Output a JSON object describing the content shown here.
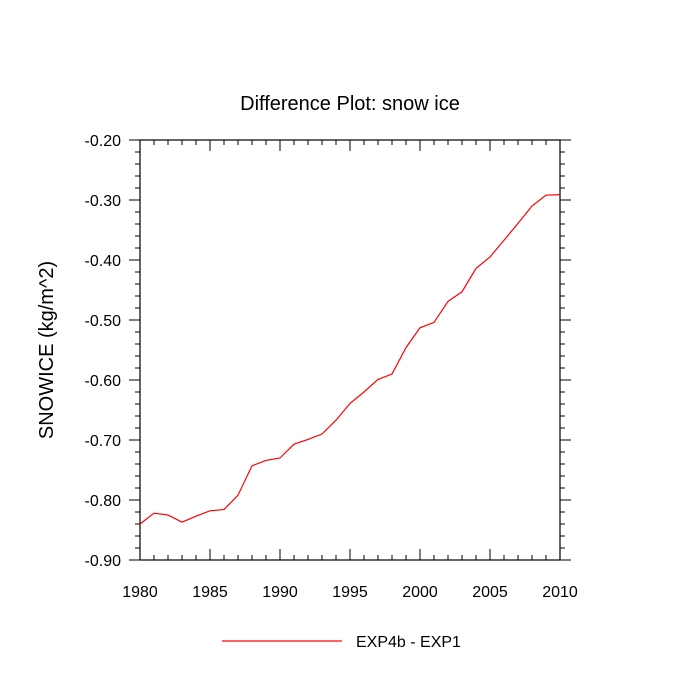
{
  "chart_data": {
    "type": "line",
    "title": "Difference Plot: snow ice",
    "xlabel": "",
    "ylabel": "SNOWICE  (kg/m^2)",
    "xlim": [
      1980,
      2010
    ],
    "ylim": [
      -0.9,
      -0.2
    ],
    "x_ticks": [
      1980,
      1985,
      1990,
      1995,
      2000,
      2005,
      2010
    ],
    "x_tick_labels": [
      "1980",
      "1985",
      "1990",
      "1995",
      "2000",
      "2005",
      "2010"
    ],
    "y_ticks": [
      -0.2,
      -0.3,
      -0.4,
      -0.5,
      -0.6,
      -0.7,
      -0.8,
      -0.9
    ],
    "y_tick_labels": [
      "-0.20",
      "-0.30",
      "-0.40",
      "-0.50",
      "-0.60",
      "-0.70",
      "-0.80",
      "-0.90"
    ],
    "grid": false,
    "legend_position": "bottom-center",
    "series": [
      {
        "name": "EXP4b - EXP1",
        "color": "#ff0000",
        "x": [
          1980,
          1981,
          1982,
          1983,
          1984,
          1985,
          1986,
          1987,
          1988,
          1989,
          1990,
          1991,
          1992,
          1993,
          1994,
          1995,
          1996,
          1997,
          1998,
          1999,
          2000,
          2001,
          2002,
          2003,
          2004,
          2005,
          2006,
          2007,
          2008,
          2009,
          2010
        ],
        "values": [
          -0.84,
          -0.822,
          -0.825,
          -0.837,
          -0.827,
          -0.818,
          -0.816,
          -0.792,
          -0.743,
          -0.734,
          -0.73,
          -0.707,
          -0.699,
          -0.69,
          -0.667,
          -0.639,
          -0.62,
          -0.599,
          -0.59,
          -0.546,
          -0.513,
          -0.504,
          -0.469,
          -0.453,
          -0.414,
          -0.395,
          -0.367,
          -0.339,
          -0.31,
          -0.292,
          -0.291
        ]
      }
    ]
  }
}
